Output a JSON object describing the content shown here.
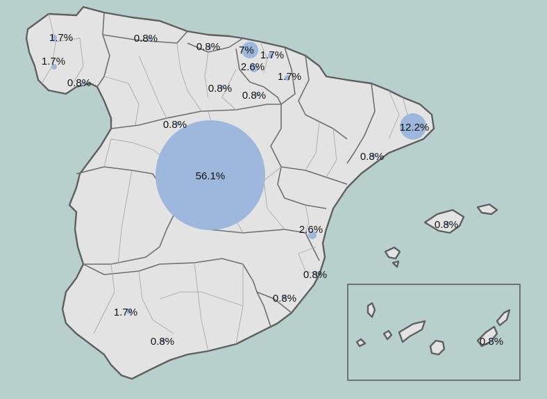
{
  "map": {
    "labels": {
      "madrid": "56.1%",
      "barcelona": "12.2%",
      "bizkaia": "7%",
      "alava": "2.6%",
      "valencia": "2.6%",
      "a_coruna": "1.7%",
      "pontevedra": "1.7%",
      "gipuzkoa": "1.7%",
      "navarra": "1.7%",
      "sevilla": "1.7%",
      "ourense": "0.8%",
      "asturias": "0.8%",
      "cantabria": "0.8%",
      "burgos": "0.8%",
      "la_rioja": "0.8%",
      "valladolid": "0.8%",
      "tarragona": "0.8%",
      "baleares": "0.8%",
      "alicante": "0.8%",
      "murcia": "0.8%",
      "malaga": "0.8%",
      "las_palmas": "0.8%"
    },
    "bubble_color": "#9db8dc",
    "sea_color": "#b7d0cb",
    "land_color": "#e3e3e3"
  }
}
